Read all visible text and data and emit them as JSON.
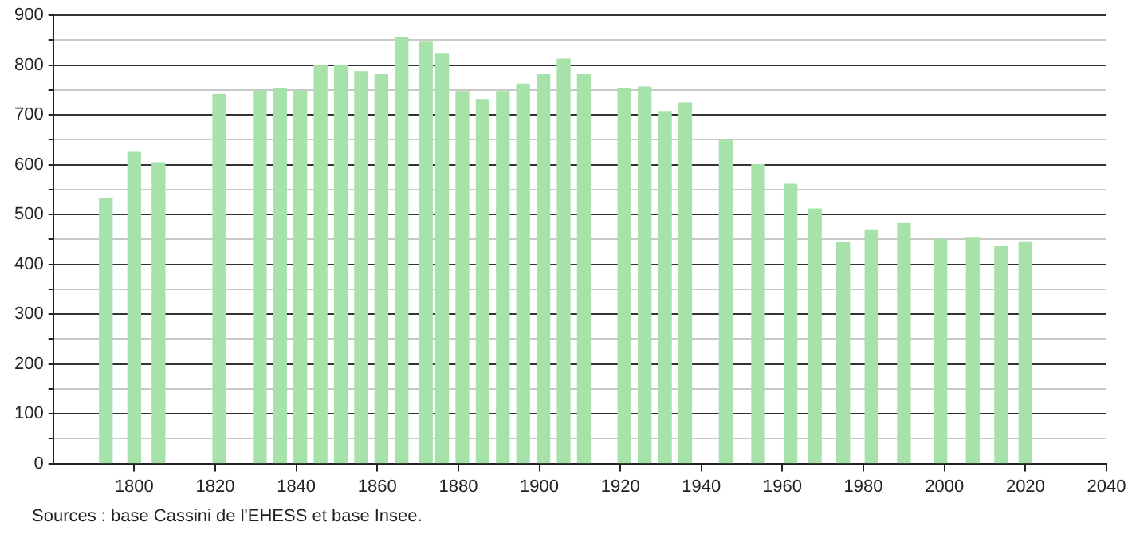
{
  "chart_data": {
    "type": "bar",
    "x": [
      1793,
      1800,
      1806,
      1821,
      1831,
      1836,
      1841,
      1846,
      1851,
      1856,
      1861,
      1866,
      1872,
      1876,
      1881,
      1886,
      1891,
      1896,
      1901,
      1906,
      1911,
      1921,
      1926,
      1931,
      1936,
      1946,
      1954,
      1962,
      1968,
      1975,
      1982,
      1990,
      1999,
      2007,
      2014,
      2020
    ],
    "values": [
      532,
      625,
      604,
      741,
      748,
      752,
      748,
      799,
      799,
      787,
      781,
      856,
      846,
      822,
      747,
      731,
      747,
      762,
      781,
      812,
      781,
      753,
      756,
      707,
      724,
      649,
      600,
      561,
      511,
      444,
      469,
      482,
      450,
      454,
      435,
      445
    ],
    "color": "#a8e2ab",
    "xlim": [
      1780,
      2040
    ],
    "xticks": [
      1800,
      1820,
      1840,
      1860,
      1880,
      1900,
      1920,
      1940,
      1960,
      1980,
      2000,
      2020,
      2040
    ],
    "ylim": [
      0,
      900
    ],
    "yticks": [
      0,
      {
        "value": 50,
        "label": null
      },
      100,
      {
        "value": 150,
        "label": null
      },
      200,
      {
        "value": 250,
        "label": null
      },
      300,
      {
        "value": 350,
        "label": null
      },
      400,
      {
        "value": 450,
        "label": null
      },
      500,
      {
        "value": 550,
        "label": null
      },
      600,
      {
        "value": 650,
        "label": null
      },
      700,
      {
        "value": 750,
        "label": null
      },
      800,
      {
        "value": 850,
        "label": null
      },
      900
    ],
    "grid": "y",
    "legend": false,
    "annotations": [
      "Sources : base Cassini de l'EHESS et base Insee."
    ]
  }
}
